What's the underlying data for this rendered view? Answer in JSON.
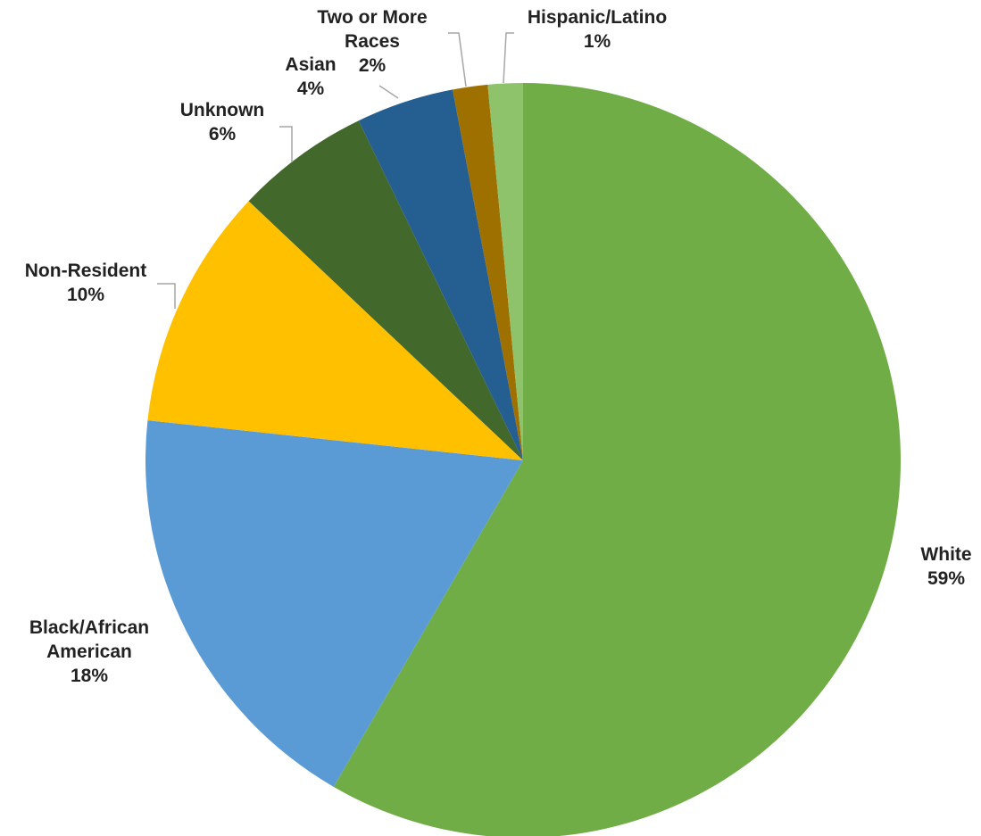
{
  "chart_data": {
    "type": "pie",
    "title": "",
    "start_angle_deg": 0,
    "direction": "clockwise",
    "slices": [
      {
        "name": "White",
        "label_lines": [
          "White"
        ],
        "value_label": "59%",
        "value": 58.6,
        "color": "#70ad47"
      },
      {
        "name": "Black/African American",
        "label_lines": [
          "Black/African",
          "American"
        ],
        "value_label": "18%",
        "value": 18.4,
        "color": "#5b9bd5"
      },
      {
        "name": "Non-Resident",
        "label_lines": [
          "Non-Resident"
        ],
        "value_label": "10%",
        "value": 10.4,
        "color": "#ffc000"
      },
      {
        "name": "Unknown",
        "label_lines": [
          "Unknown"
        ],
        "value_label": "6%",
        "value": 5.8,
        "color": "#43682b"
      },
      {
        "name": "Asian",
        "label_lines": [
          "Asian"
        ],
        "value_label": "4%",
        "value": 4.2,
        "color": "#255e91"
      },
      {
        "name": "Two or More Races",
        "label_lines": [
          "Two or More",
          "Races"
        ],
        "value_label": "2%",
        "value": 1.5,
        "color": "#9e7000"
      },
      {
        "name": "Hispanic/Latino",
        "label_lines": [
          "Hispanic/Latino"
        ],
        "value_label": "1%",
        "value": 1.5,
        "color": "#8fc36b"
      }
    ],
    "legend": "none"
  }
}
